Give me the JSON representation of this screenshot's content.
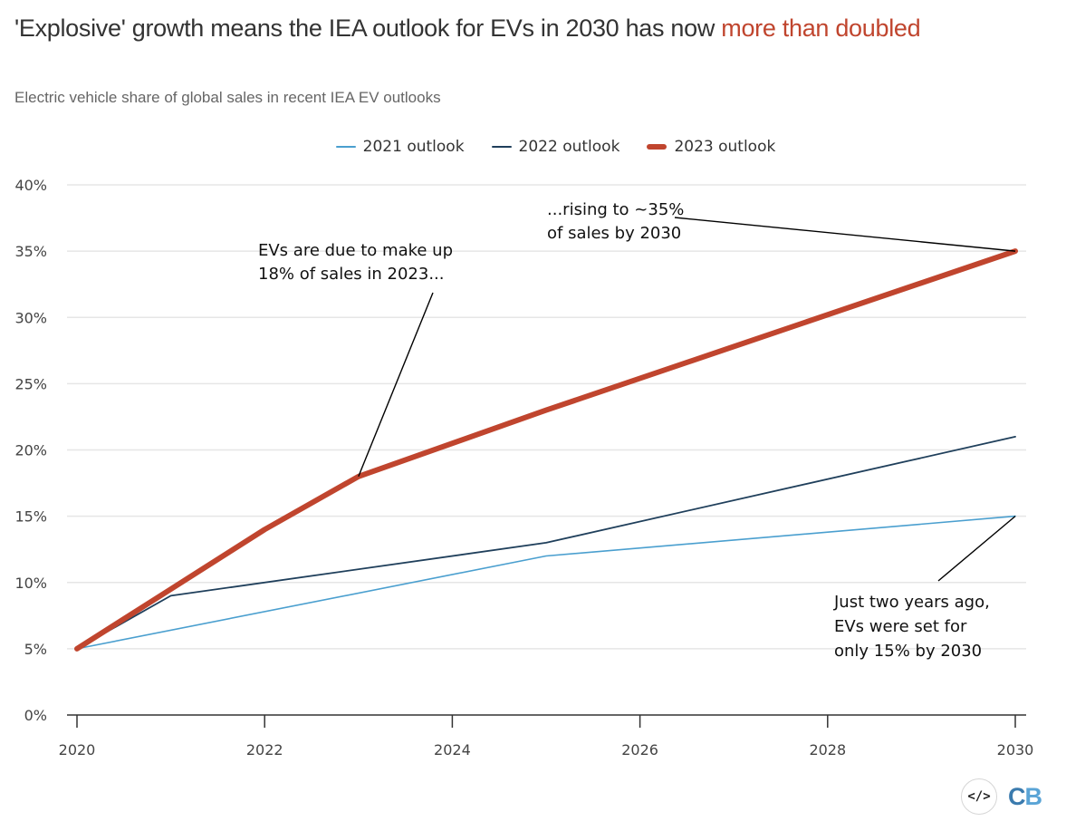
{
  "header": {
    "title_main": "'Explosive' growth means the IEA outlook for EVs in 2030 has now ",
    "title_highlight": "more than doubled",
    "subtitle": "Electric vehicle share of global sales in recent IEA EV outlooks"
  },
  "colors": {
    "highlight": "#c0452e",
    "series_2021": "#4a9fcf",
    "series_2022": "#1f3f5b",
    "series_2023": "#c0452e",
    "grid": "#e6e6e6",
    "axis": "#333333"
  },
  "legend": [
    {
      "label": "2021 outlook",
      "color": "#4a9fcf",
      "weight": "thin"
    },
    {
      "label": "2022 outlook",
      "color": "#1f3f5b",
      "weight": "thin"
    },
    {
      "label": "2023 outlook",
      "color": "#c0452e",
      "weight": "thick"
    }
  ],
  "chart_data": {
    "type": "line",
    "title": "'Explosive' growth means the IEA outlook for EVs in 2030 has now more than doubled",
    "subtitle": "Electric vehicle share of global sales in recent IEA EV outlooks",
    "xlabel": "",
    "ylabel": "",
    "xlim": [
      2020,
      2030
    ],
    "ylim": [
      0,
      40
    ],
    "x_ticks": [
      2020,
      2022,
      2024,
      2026,
      2028,
      2030
    ],
    "x_tick_labels": [
      "2020",
      "2022",
      "2024",
      "2026",
      "2028",
      "2030"
    ],
    "y_ticks": [
      0,
      5,
      10,
      15,
      20,
      25,
      30,
      35,
      40
    ],
    "y_tick_labels": [
      "0%",
      "5%",
      "10%",
      "15%",
      "20%",
      "25%",
      "30%",
      "35%",
      "40%"
    ],
    "grid": true,
    "legend_position": "top-center",
    "series": [
      {
        "name": "2021 outlook",
        "x": [
          2020,
          2025,
          2030
        ],
        "values": [
          5,
          12,
          15
        ]
      },
      {
        "name": "2022 outlook",
        "x": [
          2020,
          2021,
          2025,
          2030
        ],
        "values": [
          5,
          9,
          13,
          21
        ]
      },
      {
        "name": "2023 outlook",
        "x": [
          2020,
          2021,
          2022,
          2023,
          2025,
          2030
        ],
        "values": [
          5,
          9.5,
          14,
          18,
          23,
          35
        ]
      }
    ],
    "annotations": [
      {
        "lines": [
          "EVs are due to make up",
          "18% of sales in 2023..."
        ],
        "target": {
          "x": 2023,
          "y": 18
        }
      },
      {
        "lines": [
          "...rising to ~35%",
          "of sales by 2030"
        ],
        "target": {
          "x": 2030,
          "y": 35
        }
      },
      {
        "lines": [
          "Just two years ago,",
          "EVs were set for",
          "only 15% by 2030"
        ],
        "target": {
          "x": 2030,
          "y": 15
        }
      }
    ]
  },
  "footer": {
    "embed_icon": "</>",
    "logo_c": "C",
    "logo_b": "B"
  }
}
